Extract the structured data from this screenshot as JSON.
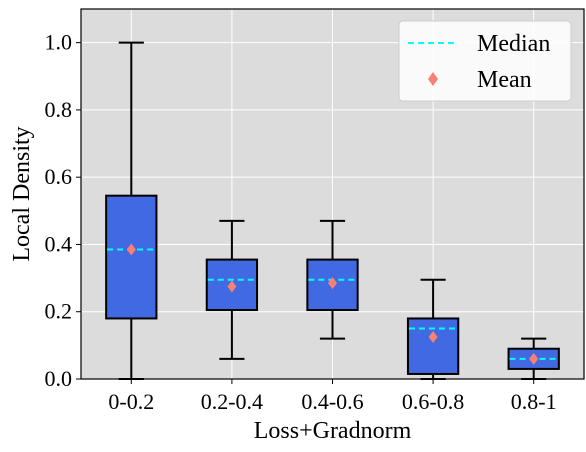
{
  "chart_data": {
    "type": "box",
    "xlabel": "Loss+Gradnorm",
    "ylabel": "Local Density",
    "ylim": [
      0,
      1.1
    ],
    "yticks": [
      "0.0",
      "0.2",
      "0.4",
      "0.6",
      "0.8",
      "1.0"
    ],
    "categories": [
      "0-0.2",
      "0.2-0.4",
      "0.4-0.6",
      "0.6-0.8",
      "0.8-1"
    ],
    "boxes": [
      {
        "whisker_low": 0.0,
        "q1": 0.18,
        "median": 0.385,
        "q3": 0.545,
        "whisker_high": 1.0,
        "mean": 0.385
      },
      {
        "whisker_low": 0.06,
        "q1": 0.205,
        "median": 0.295,
        "q3": 0.355,
        "whisker_high": 0.47,
        "mean": 0.275
      },
      {
        "whisker_low": 0.12,
        "q1": 0.205,
        "median": 0.295,
        "q3": 0.355,
        "whisker_high": 0.47,
        "mean": 0.285
      },
      {
        "whisker_low": 0.0,
        "q1": 0.015,
        "median": 0.15,
        "q3": 0.18,
        "whisker_high": 0.295,
        "mean": 0.125
      },
      {
        "whisker_low": 0.0,
        "q1": 0.03,
        "median": 0.06,
        "q3": 0.09,
        "whisker_high": 0.12,
        "mean": 0.06
      }
    ],
    "legend": {
      "position": "top-right",
      "entries": [
        {
          "label": "Median",
          "marker": "dashed-line"
        },
        {
          "label": "Mean",
          "marker": "diamond"
        }
      ]
    },
    "grid": true,
    "colors": {
      "background": "#dcdcdc",
      "box_fill": "#4169e1",
      "median_line": "#00ffff",
      "mean_marker": "#fa8072",
      "grid": "#ffffff",
      "outline": "#000000"
    }
  }
}
